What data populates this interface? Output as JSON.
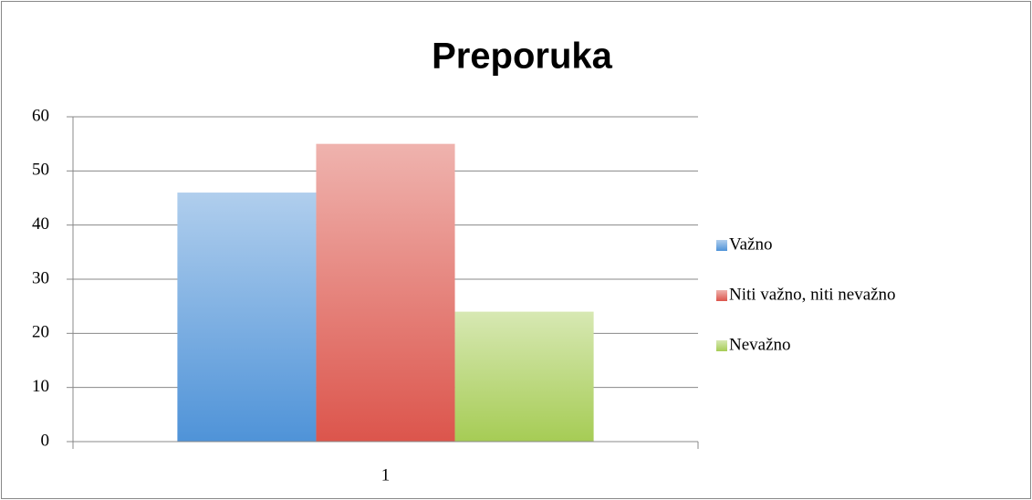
{
  "chart_data": {
    "type": "bar",
    "title": "Preporuka",
    "categories": [
      "1"
    ],
    "series": [
      {
        "name": "Važno",
        "color": "#4f93d8",
        "values": [
          46
        ]
      },
      {
        "name": "Niti važno, niti nevažno",
        "color": "#dc554c",
        "values": [
          55
        ]
      },
      {
        "name": "Nevažno",
        "color": "#a6cc55",
        "values": [
          24
        ]
      }
    ],
    "ylim": [
      0,
      60
    ],
    "yticks": [
      0,
      10,
      20,
      30,
      40,
      50,
      60
    ],
    "grid": true,
    "legend": "right"
  }
}
